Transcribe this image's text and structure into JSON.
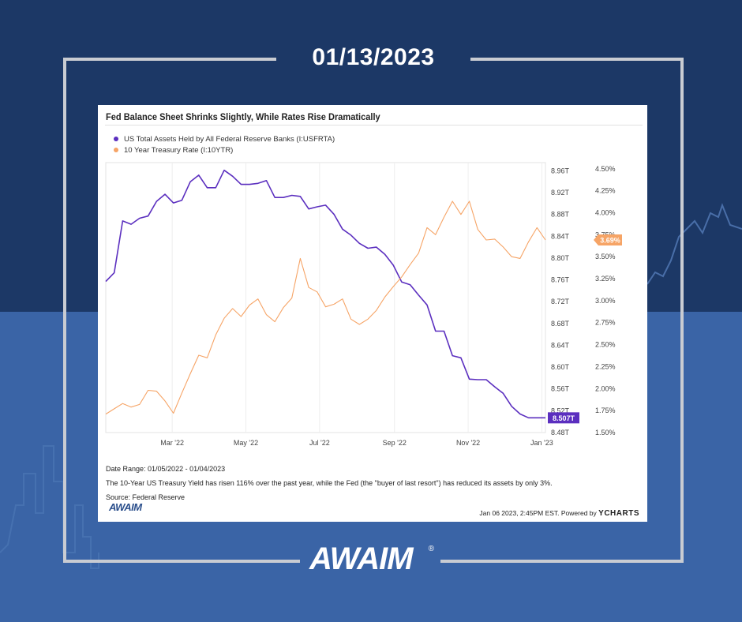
{
  "header": {
    "date": "01/13/2023"
  },
  "colors": {
    "assets": "#5b2fbf",
    "rate": "#f6a466",
    "bg_top": "#1c3866",
    "bg_bottom": "#3a64a6"
  },
  "chart_data": {
    "type": "line",
    "title": "Fed Balance Sheet Shrinks Slightly, While Rates Rise Dramatically",
    "x_ticks": [
      "Mar '22",
      "May '22",
      "Jul '22",
      "Sep '22",
      "Nov '22",
      "Jan '23"
    ],
    "x_range": [
      "2022-01-05",
      "2023-01-04"
    ],
    "y_left": {
      "ticks": [
        "8.96T",
        "8.92T",
        "8.88T",
        "8.84T",
        "8.80T",
        "8.76T",
        "8.72T",
        "8.68T",
        "8.64T",
        "8.60T",
        "8.56T",
        "8.52T",
        "8.48T"
      ],
      "range": [
        8.48,
        8.975
      ]
    },
    "y_right": {
      "ticks": [
        "4.50%",
        "4.25%",
        "4.00%",
        "3.75%",
        "3.50%",
        "3.25%",
        "3.00%",
        "2.75%",
        "2.50%",
        "2.25%",
        "2.00%",
        "1.75%",
        "1.50%"
      ],
      "range": [
        1.5,
        4.57
      ]
    },
    "grid": "vertical",
    "legend": "top-left",
    "series": [
      {
        "name": "US Total Assets Held by All Federal Reserve Banks (I:USFRTA)",
        "axis": "left",
        "last_label": "8.507T",
        "x": [
          "2022-01-05",
          "2022-01-12",
          "2022-01-19",
          "2022-01-26",
          "2022-02-02",
          "2022-02-09",
          "2022-02-16",
          "2022-02-23",
          "2022-03-02",
          "2022-03-09",
          "2022-03-16",
          "2022-03-23",
          "2022-03-30",
          "2022-04-06",
          "2022-04-13",
          "2022-04-20",
          "2022-04-27",
          "2022-05-04",
          "2022-05-11",
          "2022-05-18",
          "2022-05-25",
          "2022-06-01",
          "2022-06-08",
          "2022-06-15",
          "2022-06-22",
          "2022-06-29",
          "2022-07-06",
          "2022-07-13",
          "2022-07-20",
          "2022-07-27",
          "2022-08-03",
          "2022-08-10",
          "2022-08-17",
          "2022-08-24",
          "2022-08-31",
          "2022-09-07",
          "2022-09-14",
          "2022-09-21",
          "2022-09-28",
          "2022-10-05",
          "2022-10-12",
          "2022-10-19",
          "2022-10-26",
          "2022-11-02",
          "2022-11-09",
          "2022-11-16",
          "2022-11-23",
          "2022-11-30",
          "2022-12-07",
          "2022-12-14",
          "2022-12-21",
          "2022-12-28",
          "2023-01-04"
        ],
        "values": [
          8.757,
          8.773,
          8.868,
          8.862,
          8.873,
          8.877,
          8.904,
          8.917,
          8.901,
          8.906,
          8.94,
          8.952,
          8.929,
          8.929,
          8.961,
          8.95,
          8.935,
          8.935,
          8.937,
          8.942,
          8.911,
          8.911,
          8.915,
          8.913,
          8.89,
          8.894,
          8.897,
          8.88,
          8.853,
          8.842,
          8.827,
          8.818,
          8.82,
          8.807,
          8.787,
          8.756,
          8.751,
          8.732,
          8.714,
          8.666,
          8.666,
          8.621,
          8.617,
          8.578,
          8.577,
          8.577,
          8.564,
          8.552,
          8.528,
          8.514,
          8.507,
          8.507,
          8.507
        ]
      },
      {
        "name": "10 Year Treasury Rate (I:10YTR)",
        "axis": "right",
        "last_label": "3.69%",
        "x": [
          "2022-01-05",
          "2022-01-12",
          "2022-01-19",
          "2022-01-26",
          "2022-02-02",
          "2022-02-09",
          "2022-02-16",
          "2022-02-23",
          "2022-03-02",
          "2022-03-09",
          "2022-03-16",
          "2022-03-23",
          "2022-03-30",
          "2022-04-06",
          "2022-04-13",
          "2022-04-20",
          "2022-04-27",
          "2022-05-04",
          "2022-05-11",
          "2022-05-18",
          "2022-05-25",
          "2022-06-01",
          "2022-06-08",
          "2022-06-15",
          "2022-06-22",
          "2022-06-29",
          "2022-07-06",
          "2022-07-13",
          "2022-07-20",
          "2022-07-27",
          "2022-08-03",
          "2022-08-10",
          "2022-08-17",
          "2022-08-24",
          "2022-08-31",
          "2022-09-07",
          "2022-09-14",
          "2022-09-21",
          "2022-09-28",
          "2022-10-05",
          "2022-10-12",
          "2022-10-19",
          "2022-10-26",
          "2022-11-02",
          "2022-11-09",
          "2022-11-16",
          "2022-11-23",
          "2022-11-30",
          "2022-12-07",
          "2022-12-14",
          "2022-12-21",
          "2022-12-28",
          "2023-01-04"
        ],
        "values": [
          1.71,
          1.77,
          1.83,
          1.79,
          1.82,
          1.98,
          1.97,
          1.86,
          1.72,
          1.95,
          2.17,
          2.38,
          2.35,
          2.61,
          2.8,
          2.91,
          2.82,
          2.95,
          3.02,
          2.84,
          2.76,
          2.92,
          3.03,
          3.48,
          3.15,
          3.1,
          2.93,
          2.96,
          3.02,
          2.79,
          2.73,
          2.79,
          2.89,
          3.04,
          3.16,
          3.27,
          3.41,
          3.54,
          3.83,
          3.75,
          3.95,
          4.13,
          3.98,
          4.13,
          3.81,
          3.69,
          3.7,
          3.61,
          3.5,
          3.48,
          3.67,
          3.83,
          3.69
        ]
      }
    ]
  },
  "footer": {
    "date_range": "Date Range: 01/05/2022 - 01/04/2023",
    "note": "The 10-Year US Treasury Yield has risen 116% over the past year, while the Fed (the \"buyer of last resort\") has reduced its assets by only 3%.",
    "source": "Source: Federal Reserve",
    "small_logo": "AWAIM",
    "timestamp": "Jan 06 2023, 2:45PM EST. Powered by",
    "ycharts": "YCHARTS"
  },
  "brand": {
    "logo": "AWAIM",
    "reg": "®"
  }
}
